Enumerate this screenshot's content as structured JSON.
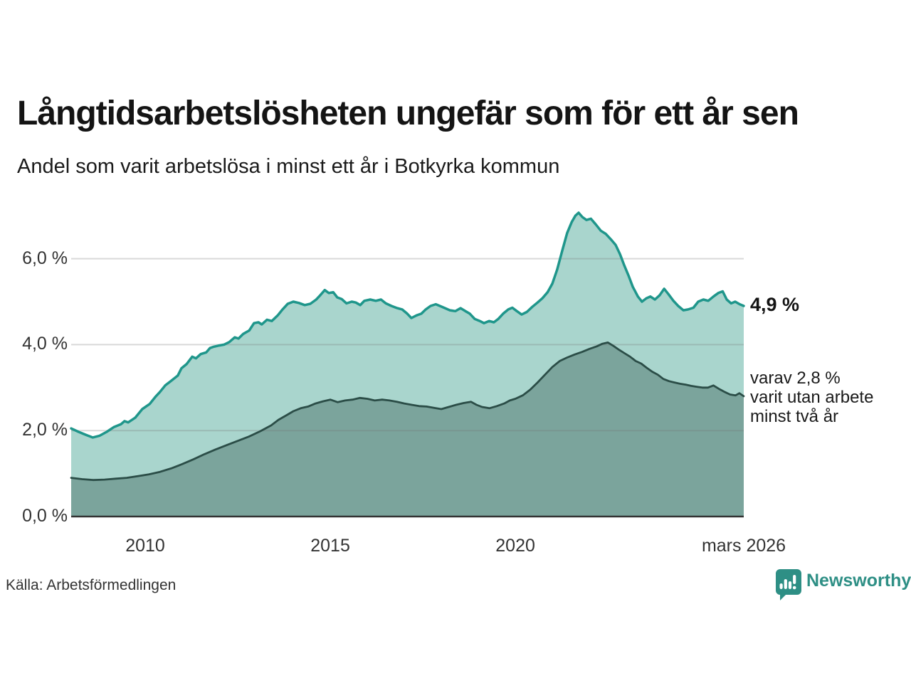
{
  "header": {
    "title": "Långtidsarbetslösheten ungefär som för ett år sen",
    "subtitle": "Andel som varit arbetslösa i minst ett år i Botkyrka kommun"
  },
  "annotations": {
    "latest_value": "4,9 %",
    "secondary_line1": "varav 2,8 %",
    "secondary_line2": "varit utan arbete",
    "secondary_line3": "minst två år"
  },
  "footer": {
    "source": "Källa: Arbetsförmedlingen",
    "brand": "Newsworthy"
  },
  "colors": {
    "accent_teal": "#2e8f85",
    "line_total": "#1f968b",
    "fill_total": "#a9d5cd",
    "line_two_years": "#2b4d47",
    "fill_two_years": "#7ba49c",
    "gridline": "rgba(120,120,120,0.28)",
    "baseline": "#333333",
    "text": "#1a1a1a"
  },
  "chart_data": {
    "type": "area",
    "title": "Långtidsarbetslösheten ungefär som för ett år sen",
    "subtitle": "Andel som varit arbetslösa i minst ett år i Botkyrka kommun",
    "xlabel": "",
    "ylabel": "",
    "xlim": [
      2008.0,
      2026.17
    ],
    "ylim": [
      0,
      7.2
    ],
    "grid": true,
    "grid_values": [
      2,
      4,
      6
    ],
    "yticks": [
      {
        "value": 0,
        "label": "0,0 %"
      },
      {
        "value": 2,
        "label": "2,0 %"
      },
      {
        "value": 4,
        "label": "4,0 %"
      },
      {
        "value": 6,
        "label": "6,0 %"
      }
    ],
    "xticks": [
      {
        "value": 2010,
        "label": "2010"
      },
      {
        "value": 2015,
        "label": "2015"
      },
      {
        "value": 2020,
        "label": "2020"
      },
      {
        "value": 2026.17,
        "label": "mars 2026"
      }
    ],
    "series": [
      {
        "name": "Andel arbetslösa minst ett år",
        "end_label": "4,9 %",
        "end_value": 4.9,
        "line_color": "#1f968b",
        "fill_color": "#a9d5cd",
        "line_width": 3.5,
        "points": [
          [
            2008.0,
            2.05
          ],
          [
            2008.2,
            1.97
          ],
          [
            2008.4,
            1.9
          ],
          [
            2008.58,
            1.84
          ],
          [
            2008.77,
            1.88
          ],
          [
            2008.96,
            1.97
          ],
          [
            2009.15,
            2.08
          ],
          [
            2009.35,
            2.15
          ],
          [
            2009.44,
            2.22
          ],
          [
            2009.54,
            2.19
          ],
          [
            2009.73,
            2.3
          ],
          [
            2009.92,
            2.5
          ],
          [
            2010.12,
            2.62
          ],
          [
            2010.27,
            2.78
          ],
          [
            2010.4,
            2.9
          ],
          [
            2010.54,
            3.05
          ],
          [
            2010.69,
            3.15
          ],
          [
            2010.88,
            3.28
          ],
          [
            2010.98,
            3.45
          ],
          [
            2011.12,
            3.55
          ],
          [
            2011.27,
            3.72
          ],
          [
            2011.37,
            3.68
          ],
          [
            2011.5,
            3.78
          ],
          [
            2011.65,
            3.82
          ],
          [
            2011.75,
            3.92
          ],
          [
            2011.85,
            3.95
          ],
          [
            2012.0,
            3.98
          ],
          [
            2012.13,
            4.0
          ],
          [
            2012.27,
            4.06
          ],
          [
            2012.42,
            4.17
          ],
          [
            2012.52,
            4.14
          ],
          [
            2012.65,
            4.25
          ],
          [
            2012.81,
            4.33
          ],
          [
            2012.94,
            4.5
          ],
          [
            2013.06,
            4.52
          ],
          [
            2013.15,
            4.47
          ],
          [
            2013.29,
            4.58
          ],
          [
            2013.42,
            4.55
          ],
          [
            2013.58,
            4.68
          ],
          [
            2013.71,
            4.82
          ],
          [
            2013.85,
            4.95
          ],
          [
            2014.0,
            5.0
          ],
          [
            2014.15,
            4.97
          ],
          [
            2014.31,
            4.92
          ],
          [
            2014.46,
            4.95
          ],
          [
            2014.62,
            5.05
          ],
          [
            2014.73,
            5.15
          ],
          [
            2014.85,
            5.27
          ],
          [
            2014.96,
            5.2
          ],
          [
            2015.08,
            5.22
          ],
          [
            2015.19,
            5.1
          ],
          [
            2015.31,
            5.06
          ],
          [
            2015.44,
            4.96
          ],
          [
            2015.58,
            5.0
          ],
          [
            2015.69,
            4.98
          ],
          [
            2015.81,
            4.92
          ],
          [
            2015.92,
            5.02
          ],
          [
            2016.08,
            5.05
          ],
          [
            2016.23,
            5.02
          ],
          [
            2016.37,
            5.05
          ],
          [
            2016.5,
            4.96
          ],
          [
            2016.65,
            4.9
          ],
          [
            2016.81,
            4.85
          ],
          [
            2016.94,
            4.82
          ],
          [
            2017.08,
            4.72
          ],
          [
            2017.19,
            4.62
          ],
          [
            2017.33,
            4.68
          ],
          [
            2017.46,
            4.72
          ],
          [
            2017.58,
            4.82
          ],
          [
            2017.71,
            4.9
          ],
          [
            2017.85,
            4.94
          ],
          [
            2017.96,
            4.9
          ],
          [
            2018.1,
            4.85
          ],
          [
            2018.23,
            4.8
          ],
          [
            2018.38,
            4.78
          ],
          [
            2018.52,
            4.85
          ],
          [
            2018.65,
            4.78
          ],
          [
            2018.77,
            4.72
          ],
          [
            2018.9,
            4.6
          ],
          [
            2019.04,
            4.55
          ],
          [
            2019.15,
            4.5
          ],
          [
            2019.29,
            4.55
          ],
          [
            2019.42,
            4.52
          ],
          [
            2019.54,
            4.6
          ],
          [
            2019.67,
            4.72
          ],
          [
            2019.81,
            4.82
          ],
          [
            2019.92,
            4.86
          ],
          [
            2020.04,
            4.78
          ],
          [
            2020.17,
            4.7
          ],
          [
            2020.31,
            4.76
          ],
          [
            2020.46,
            4.88
          ],
          [
            2020.6,
            4.98
          ],
          [
            2020.73,
            5.08
          ],
          [
            2020.87,
            5.22
          ],
          [
            2021.0,
            5.42
          ],
          [
            2021.13,
            5.75
          ],
          [
            2021.27,
            6.2
          ],
          [
            2021.4,
            6.6
          ],
          [
            2021.52,
            6.85
          ],
          [
            2021.62,
            7.0
          ],
          [
            2021.71,
            7.07
          ],
          [
            2021.81,
            6.97
          ],
          [
            2021.92,
            6.9
          ],
          [
            2022.04,
            6.93
          ],
          [
            2022.17,
            6.8
          ],
          [
            2022.31,
            6.65
          ],
          [
            2022.44,
            6.58
          ],
          [
            2022.58,
            6.45
          ],
          [
            2022.71,
            6.32
          ],
          [
            2022.83,
            6.1
          ],
          [
            2022.94,
            5.85
          ],
          [
            2023.06,
            5.6
          ],
          [
            2023.17,
            5.35
          ],
          [
            2023.31,
            5.12
          ],
          [
            2023.42,
            5.0
          ],
          [
            2023.54,
            5.08
          ],
          [
            2023.65,
            5.12
          ],
          [
            2023.77,
            5.05
          ],
          [
            2023.9,
            5.15
          ],
          [
            2024.02,
            5.3
          ],
          [
            2024.13,
            5.18
          ],
          [
            2024.27,
            5.02
          ],
          [
            2024.4,
            4.9
          ],
          [
            2024.54,
            4.8
          ],
          [
            2024.67,
            4.82
          ],
          [
            2024.81,
            4.86
          ],
          [
            2024.94,
            5.0
          ],
          [
            2025.08,
            5.05
          ],
          [
            2025.21,
            5.02
          ],
          [
            2025.35,
            5.12
          ],
          [
            2025.48,
            5.2
          ],
          [
            2025.6,
            5.24
          ],
          [
            2025.71,
            5.05
          ],
          [
            2025.83,
            4.96
          ],
          [
            2025.94,
            5.0
          ],
          [
            2026.06,
            4.94
          ],
          [
            2026.17,
            4.9
          ]
        ]
      },
      {
        "name": "varav utan arbete minst två år",
        "end_label": "2,8 %",
        "end_value": 2.8,
        "line_color": "#2b4d47",
        "fill_color": "#7ba49c",
        "line_width": 2.8,
        "points": [
          [
            2008.0,
            0.9
          ],
          [
            2008.3,
            0.87
          ],
          [
            2008.6,
            0.85
          ],
          [
            2008.9,
            0.86
          ],
          [
            2009.2,
            0.88
          ],
          [
            2009.5,
            0.9
          ],
          [
            2009.8,
            0.94
          ],
          [
            2010.1,
            0.98
          ],
          [
            2010.4,
            1.04
          ],
          [
            2010.7,
            1.12
          ],
          [
            2011.0,
            1.22
          ],
          [
            2011.3,
            1.33
          ],
          [
            2011.6,
            1.45
          ],
          [
            2011.9,
            1.56
          ],
          [
            2012.2,
            1.66
          ],
          [
            2012.5,
            1.76
          ],
          [
            2012.8,
            1.86
          ],
          [
            2013.1,
            1.98
          ],
          [
            2013.4,
            2.12
          ],
          [
            2013.6,
            2.25
          ],
          [
            2013.8,
            2.35
          ],
          [
            2014.0,
            2.45
          ],
          [
            2014.2,
            2.52
          ],
          [
            2014.4,
            2.56
          ],
          [
            2014.6,
            2.63
          ],
          [
            2014.8,
            2.68
          ],
          [
            2015.0,
            2.72
          ],
          [
            2015.2,
            2.66
          ],
          [
            2015.4,
            2.7
          ],
          [
            2015.6,
            2.72
          ],
          [
            2015.8,
            2.76
          ],
          [
            2016.0,
            2.74
          ],
          [
            2016.2,
            2.7
          ],
          [
            2016.4,
            2.72
          ],
          [
            2016.6,
            2.7
          ],
          [
            2016.8,
            2.67
          ],
          [
            2017.0,
            2.63
          ],
          [
            2017.2,
            2.6
          ],
          [
            2017.4,
            2.57
          ],
          [
            2017.6,
            2.56
          ],
          [
            2017.8,
            2.53
          ],
          [
            2018.0,
            2.5
          ],
          [
            2018.2,
            2.55
          ],
          [
            2018.4,
            2.6
          ],
          [
            2018.6,
            2.64
          ],
          [
            2018.8,
            2.67
          ],
          [
            2018.95,
            2.6
          ],
          [
            2019.1,
            2.55
          ],
          [
            2019.3,
            2.52
          ],
          [
            2019.5,
            2.57
          ],
          [
            2019.7,
            2.63
          ],
          [
            2019.85,
            2.7
          ],
          [
            2020.0,
            2.74
          ],
          [
            2020.2,
            2.82
          ],
          [
            2020.4,
            2.95
          ],
          [
            2020.6,
            3.12
          ],
          [
            2020.8,
            3.3
          ],
          [
            2021.0,
            3.48
          ],
          [
            2021.2,
            3.62
          ],
          [
            2021.4,
            3.7
          ],
          [
            2021.6,
            3.77
          ],
          [
            2021.8,
            3.83
          ],
          [
            2022.0,
            3.9
          ],
          [
            2022.2,
            3.96
          ],
          [
            2022.35,
            4.02
          ],
          [
            2022.5,
            4.05
          ],
          [
            2022.65,
            3.97
          ],
          [
            2022.8,
            3.88
          ],
          [
            2022.95,
            3.8
          ],
          [
            2023.1,
            3.72
          ],
          [
            2023.25,
            3.62
          ],
          [
            2023.4,
            3.56
          ],
          [
            2023.55,
            3.46
          ],
          [
            2023.7,
            3.37
          ],
          [
            2023.85,
            3.3
          ],
          [
            2024.0,
            3.2
          ],
          [
            2024.15,
            3.15
          ],
          [
            2024.3,
            3.12
          ],
          [
            2024.45,
            3.09
          ],
          [
            2024.6,
            3.07
          ],
          [
            2024.75,
            3.04
          ],
          [
            2024.9,
            3.02
          ],
          [
            2025.05,
            3.0
          ],
          [
            2025.2,
            3.0
          ],
          [
            2025.35,
            3.05
          ],
          [
            2025.5,
            2.97
          ],
          [
            2025.65,
            2.9
          ],
          [
            2025.8,
            2.84
          ],
          [
            2025.95,
            2.82
          ],
          [
            2026.05,
            2.87
          ],
          [
            2026.17,
            2.8
          ]
        ]
      }
    ],
    "legend": "none"
  }
}
